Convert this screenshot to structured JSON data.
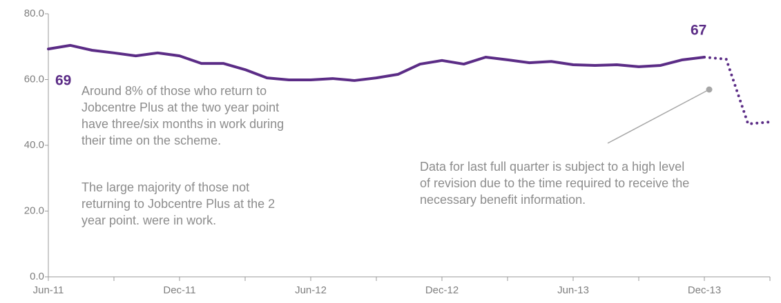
{
  "chart_data": {
    "type": "line",
    "categories": [
      "Jun-11",
      null,
      null,
      null,
      null,
      null,
      "Dec-11",
      null,
      null,
      null,
      null,
      null,
      "Jun-12",
      null,
      null,
      null,
      null,
      null,
      "Dec-12",
      null,
      null,
      null,
      null,
      null,
      "Jun-13",
      null,
      null,
      null,
      null,
      null,
      "Dec-13",
      null,
      null,
      null
    ],
    "series": [
      {
        "color": "#5b2c86",
        "style": "solid",
        "values": [
          69.3,
          70.4,
          68.9,
          68.1,
          67.2,
          68.1,
          67.2,
          64.9,
          64.9,
          63.0,
          60.5,
          59.9,
          59.9,
          60.3,
          59.7,
          60.5,
          61.6,
          64.7,
          65.8,
          64.7,
          66.8,
          66.0,
          65.1,
          65.5,
          64.5,
          64.3,
          64.5,
          63.9,
          64.3,
          66.0,
          66.8,
          null,
          null,
          null
        ],
        "value_labels": [
          "69",
          null,
          null,
          null,
          null,
          null,
          null,
          null,
          null,
          null,
          null,
          null,
          null,
          null,
          null,
          null,
          null,
          null,
          null,
          null,
          null,
          null,
          null,
          null,
          null,
          null,
          null,
          null,
          null,
          null,
          "67",
          null,
          null,
          null
        ]
      },
      {
        "color": "#5b2c86",
        "style": "dotted",
        "values": [
          null,
          null,
          null,
          null,
          null,
          null,
          null,
          null,
          null,
          null,
          null,
          null,
          null,
          null,
          null,
          null,
          null,
          null,
          null,
          null,
          null,
          null,
          null,
          null,
          null,
          null,
          null,
          null,
          null,
          null,
          66.8,
          66.2,
          46.5,
          47.1
        ]
      }
    ],
    "ylim": [
      0,
      80
    ],
    "yticks": [
      {
        "value": 0,
        "label": "0.0"
      },
      {
        "value": 20,
        "label": "20.0"
      },
      {
        "value": 40,
        "label": "40.0"
      },
      {
        "value": 60,
        "label": "60.0"
      },
      {
        "value": 80,
        "label": "80.0"
      }
    ],
    "grid": false,
    "annotations": [
      [
        "Around 8% of those who return to",
        "Jobcentre Plus at the two year point",
        "have three/six months in work during",
        "their time on the scheme."
      ],
      [
        "The large majority of those not",
        "returning  to Jobcentre Plus at the 2",
        "year point. were in work."
      ],
      [
        "Data for last full quarter is subject to a high level",
        "of revision due to the time required to receive the",
        "necessary  benefit  information."
      ]
    ]
  }
}
